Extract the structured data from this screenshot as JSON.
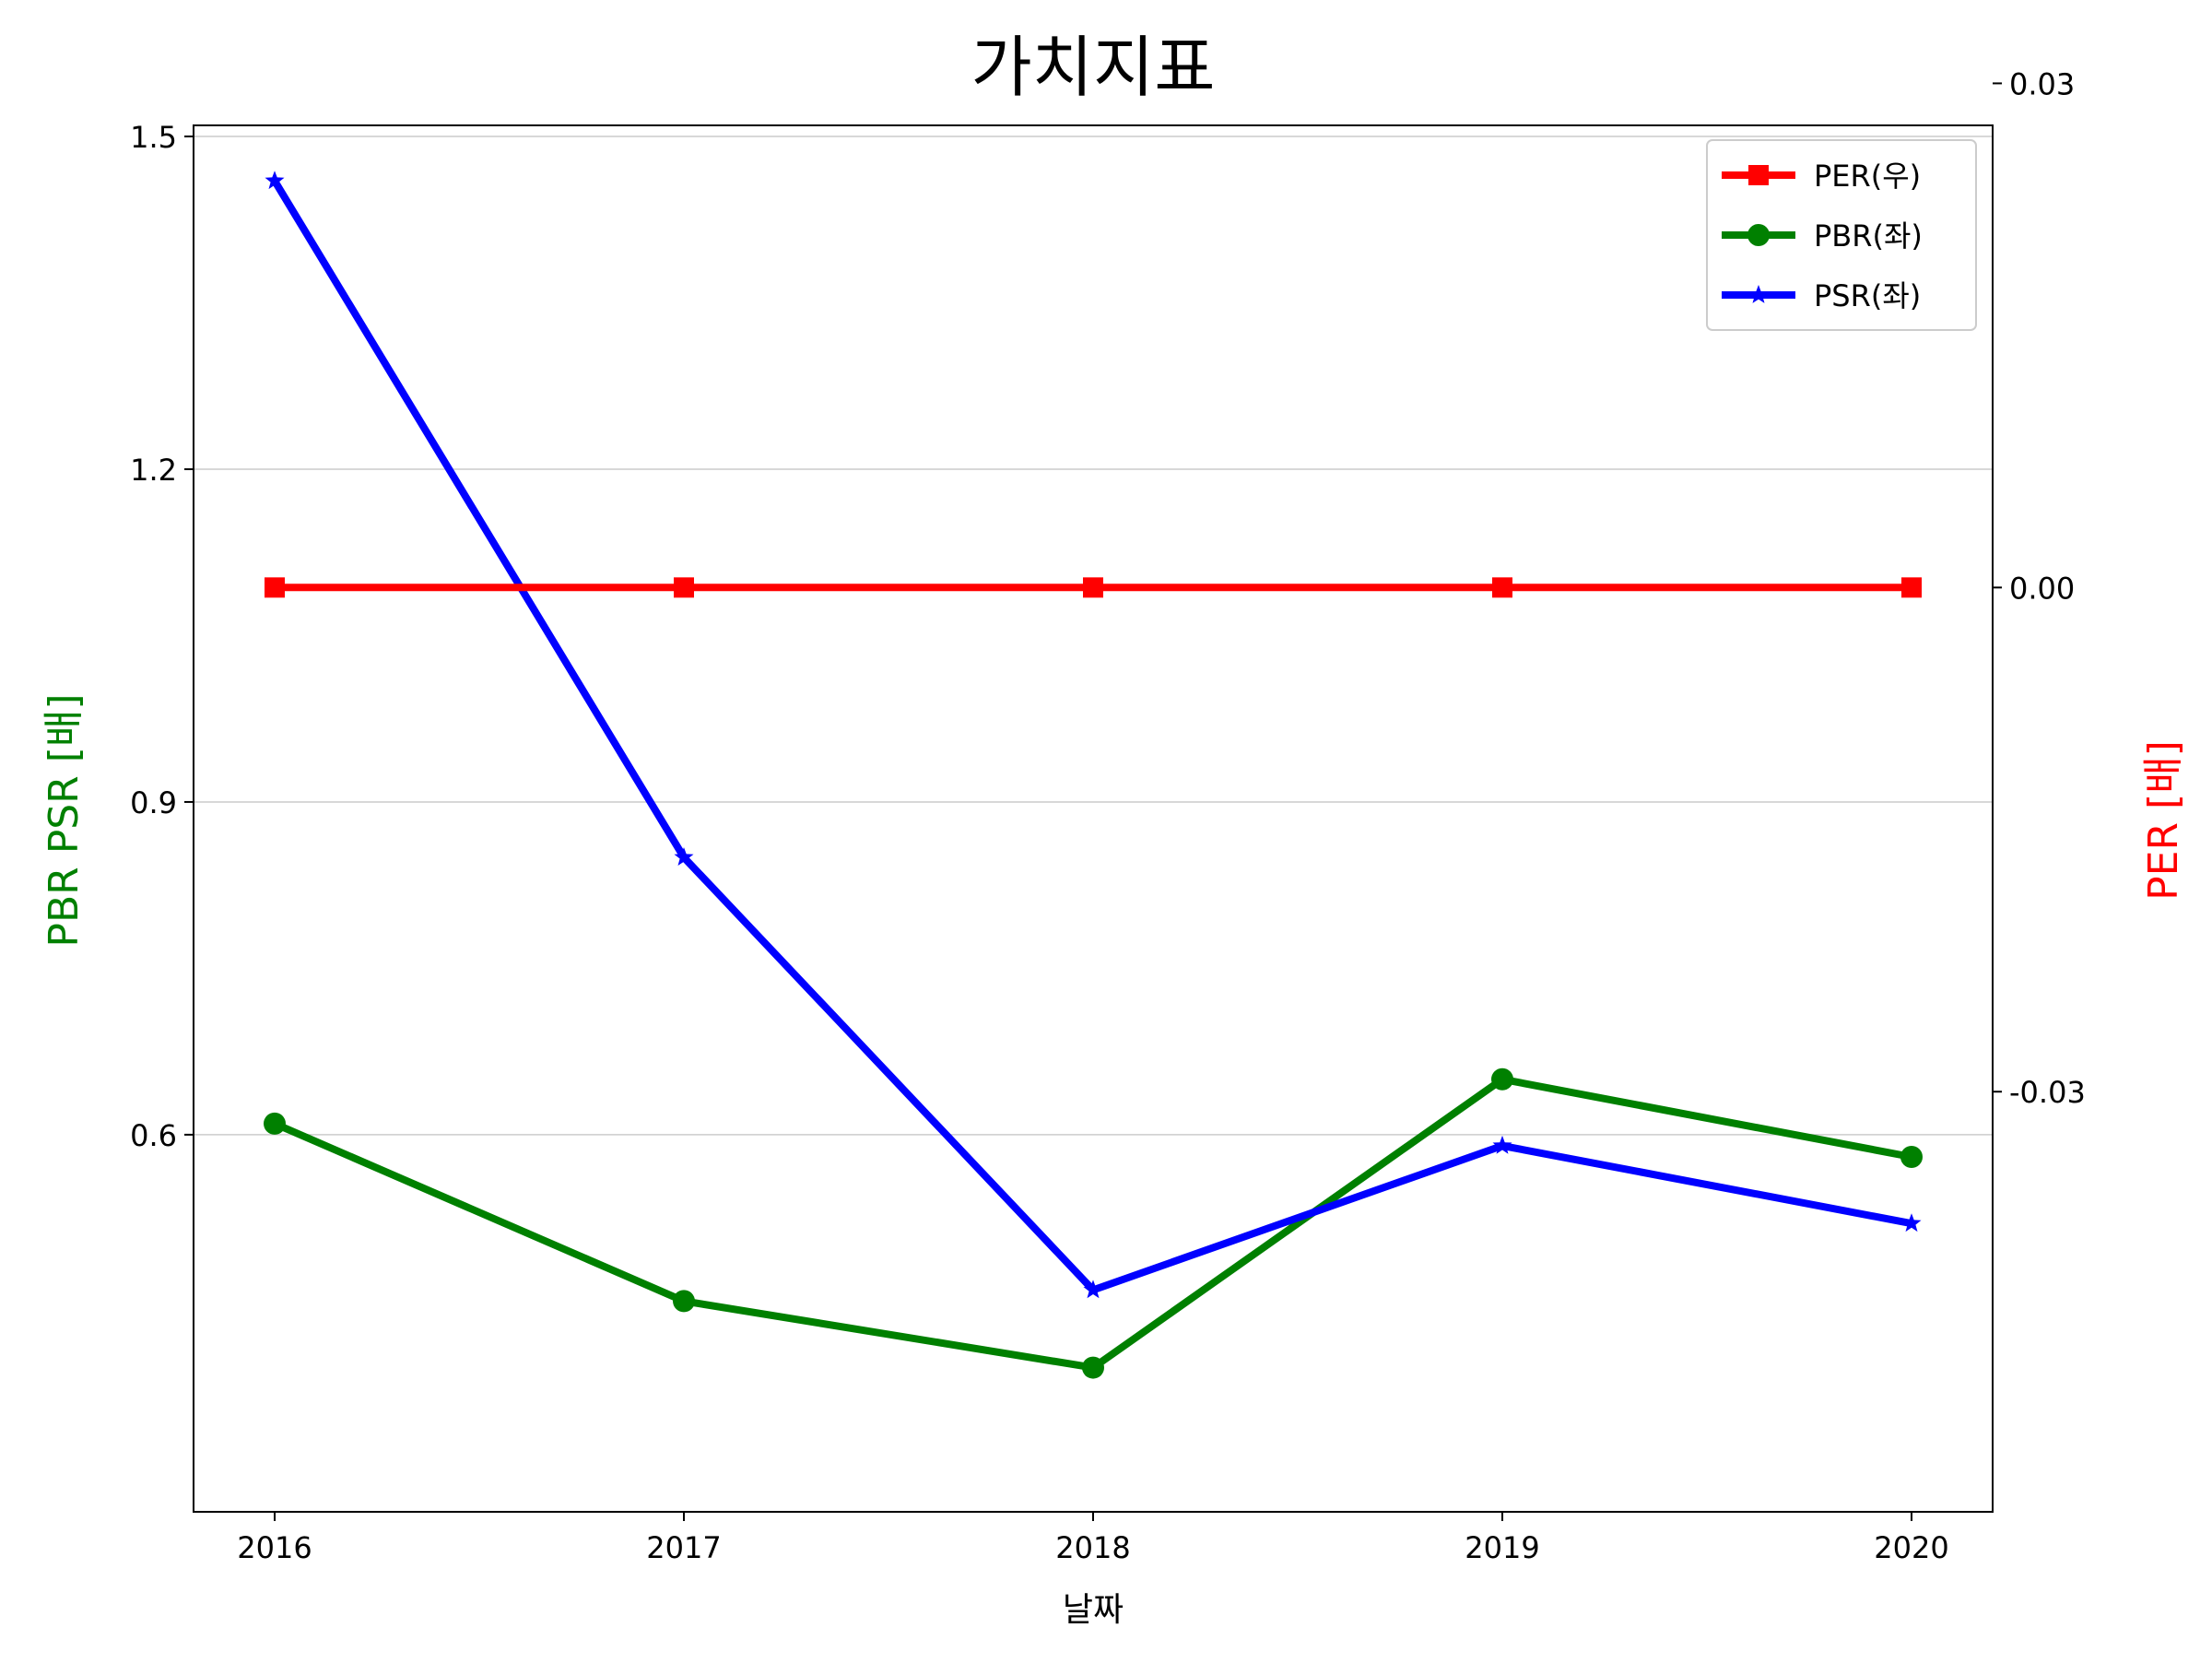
{
  "chart_data": {
    "type": "line",
    "title": "가치지표",
    "xlabel": "날짜",
    "ylabel_left": "PBR PSR [배]",
    "ylabel_right": "PER [배]",
    "categories": [
      "2016",
      "2017",
      "2018",
      "2019",
      "2020"
    ],
    "y_left": {
      "lim": [
        0.26,
        1.51
      ],
      "ticks": [
        0.6,
        0.9,
        1.2,
        1.5
      ],
      "tick_labels": [
        "0.6",
        "0.9",
        "1.2",
        "1.5"
      ]
    },
    "y_right": {
      "lim": [
        -0.055,
        0.0275
      ],
      "ticks": [
        -0.03,
        0.0,
        0.03
      ],
      "tick_labels": [
        "-0.03",
        "0.00",
        "0.03"
      ]
    },
    "grid": "horizontal (left axis)",
    "legend_position": "top-right",
    "series": [
      {
        "name": "PER(우)",
        "axis": "right",
        "color": "#ff0000",
        "marker": "square",
        "values": [
          0,
          0,
          0,
          0,
          0
        ]
      },
      {
        "name": "PBR(좌)",
        "axis": "left",
        "color": "#008000",
        "marker": "circle",
        "values": [
          0.61,
          0.45,
          0.39,
          0.65,
          0.58
        ]
      },
      {
        "name": "PSR(좌)",
        "axis": "left",
        "color": "#0000ff",
        "marker": "star",
        "values": [
          1.46,
          0.85,
          0.46,
          0.59,
          0.52
        ]
      }
    ]
  }
}
